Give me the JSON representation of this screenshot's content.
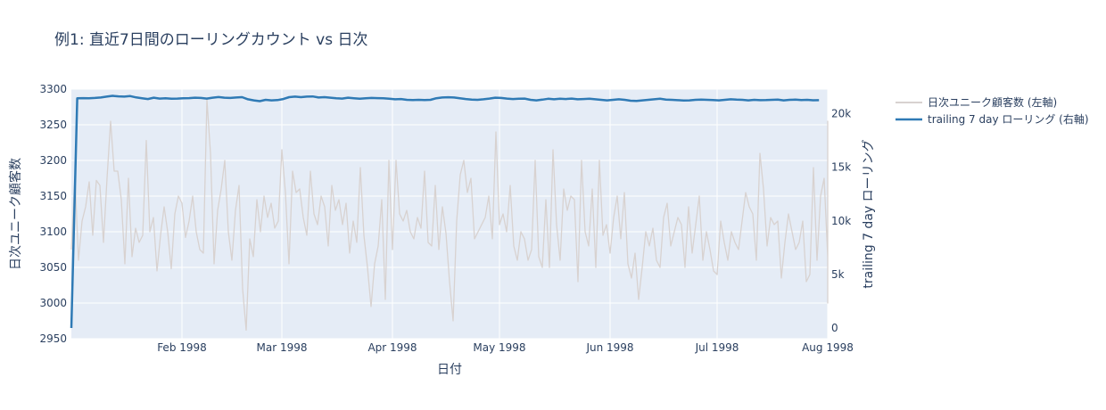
{
  "chart_data": {
    "type": "line",
    "title": "例1: 直近7日間のローリングカウント vs 日次",
    "xlabel": "日付",
    "ylabel_left": "日次ユニーク顧客数",
    "ylabel_right": "trailing 7 day ローリング",
    "x_ticks": [
      "Feb 1998",
      "Mar 1998",
      "Apr 1998",
      "May 1998",
      "Jun 1998",
      "Jul 1998",
      "Aug 1998"
    ],
    "x_tick_dates": [
      "1998-02-01",
      "1998-03-01",
      "1998-04-01",
      "1998-05-01",
      "1998-06-01",
      "1998-07-01",
      "1998-08-01"
    ],
    "x_range": [
      "1998-01-01",
      "1998-08-01"
    ],
    "y_left_range": [
      2950,
      3300
    ],
    "y_left_ticks": [
      "2950",
      "3000",
      "3050",
      "3100",
      "3150",
      "3200",
      "3250",
      "3300"
    ],
    "y_right_range": [
      -1000,
      22300
    ],
    "y_right_ticks": [
      "0",
      "5k",
      "10k",
      "15k",
      "20k"
    ],
    "legend_position": "top-right",
    "grid": true,
    "series": [
      {
        "name": "日次ユニーク顧客数 (左軸)",
        "axis": "left",
        "color": "#d8d2d0",
        "start_date": "1998-01-01",
        "values": [
          3075,
          3178,
          3060,
          3115,
          3135,
          3170,
          3095,
          3172,
          3165,
          3085,
          3175,
          3255,
          3185,
          3185,
          3145,
          3055,
          3175,
          3065,
          3105,
          3085,
          3095,
          3228,
          3100,
          3120,
          3045,
          3095,
          3135,
          3100,
          3048,
          3125,
          3150,
          3140,
          3092,
          3115,
          3150,
          3100,
          3075,
          3070,
          3285,
          3210,
          3055,
          3130,
          3160,
          3200,
          3100,
          3060,
          3130,
          3165,
          3020,
          2962,
          3090,
          3065,
          3145,
          3100,
          3150,
          3120,
          3140,
          3105,
          3115,
          3215,
          3155,
          3055,
          3185,
          3155,
          3160,
          3120,
          3095,
          3185,
          3125,
          3110,
          3150,
          3135,
          3080,
          3165,
          3130,
          3145,
          3110,
          3140,
          3070,
          3115,
          3085,
          3190,
          3095,
          3050,
          2995,
          3055,
          3080,
          3145,
          3005,
          3200,
          3075,
          3200,
          3125,
          3115,
          3130,
          3100,
          3090,
          3120,
          3105,
          3185,
          3085,
          3080,
          3165,
          3075,
          3135,
          3098,
          3030,
          2975,
          3115,
          3180,
          3200,
          3155,
          3175,
          3090,
          3100,
          3110,
          3120,
          3150,
          3090,
          3240,
          3110,
          3125,
          3100,
          3165,
          3080,
          3060,
          3100,
          3090,
          3060,
          3075,
          3200,
          3065,
          3050,
          3145,
          3050,
          3215,
          3110,
          3060,
          3160,
          3130,
          3150,
          3145,
          3030,
          3200,
          3100,
          3080,
          3160,
          3050,
          3200,
          3095,
          3110,
          3070,
          3120,
          3150,
          3090,
          3155,
          3055,
          3035,
          3070,
          3005,
          3050,
          3100,
          3080,
          3105,
          3060,
          3050,
          3120,
          3140,
          3080,
          3100,
          3120,
          3110,
          3050,
          3135,
          3070,
          3110,
          3150,
          3060,
          3100,
          3075,
          3045,
          3040,
          3115,
          3085,
          3060,
          3100,
          3085,
          3075,
          3115,
          3155,
          3135,
          3125,
          3060,
          3210,
          3160,
          3080,
          3120,
          3110,
          3115,
          3035,
          3085,
          3125,
          3100,
          3075,
          3085,
          3115,
          3030,
          3040,
          3190,
          3060,
          3150,
          3175,
          3065,
          3120,
          3140,
          3180,
          3060,
          3255,
          3175,
          3185,
          3065,
          3120,
          3160,
          3155,
          3125,
          3000,
          3135,
          3115,
          3110,
          3110,
          3055,
          3070,
          3100,
          3125,
          3105,
          3130
        ]
      },
      {
        "name": "trailing 7 day ローリング (右軸)",
        "axis": "right",
        "color": "#2f7ab5",
        "start_date": "1998-01-01",
        "values": [
          0,
          21450,
          21460,
          21450,
          21480,
          21520,
          21600,
          21680,
          21630,
          21600,
          21650,
          21530,
          21450,
          21380,
          21500,
          21420,
          21450,
          21400,
          21420,
          21450,
          21460,
          21500,
          21480,
          21420,
          21500,
          21560,
          21500,
          21480,
          21520,
          21550,
          21350,
          21250,
          21180,
          21300,
          21250,
          21280,
          21380,
          21550,
          21600,
          21550,
          21600,
          21620,
          21520,
          21550,
          21500,
          21450,
          21420,
          21500,
          21450,
          21400,
          21450,
          21480,
          21460,
          21440,
          21400,
          21350,
          21380,
          21300,
          21280,
          21300,
          21280,
          21300,
          21450,
          21520,
          21540,
          21520,
          21450,
          21380,
          21320,
          21300,
          21350,
          21420,
          21500,
          21480,
          21420,
          21380,
          21400,
          21420,
          21300,
          21250,
          21320,
          21400,
          21350,
          21400,
          21380,
          21420,
          21350,
          21380,
          21400,
          21350,
          21300,
          21250,
          21300,
          21350,
          21300,
          21220,
          21200,
          21250,
          21300,
          21350,
          21400,
          21330,
          21300,
          21270,
          21240,
          21250,
          21300,
          21320,
          21300,
          21280,
          21250,
          21300,
          21350,
          21320,
          21300,
          21250,
          21300,
          21270,
          21280,
          21300,
          21320,
          21250,
          21300,
          21320,
          21280,
          21300,
          21260,
          21270
        ]
      }
    ]
  }
}
